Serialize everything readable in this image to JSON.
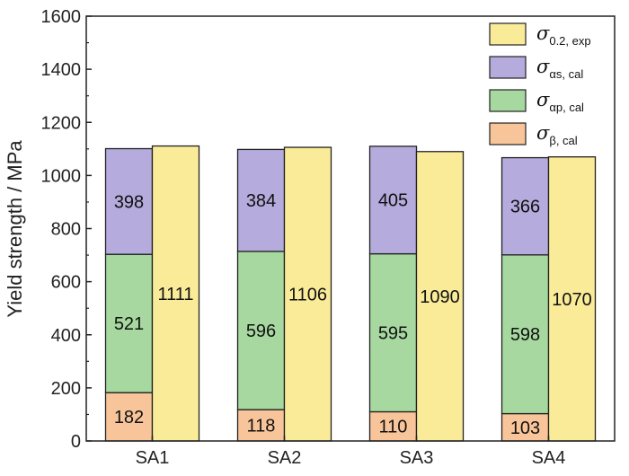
{
  "chart_data": {
    "type": "bar",
    "stacked_with_side_bar": true,
    "categories": [
      "SA1",
      "SA2",
      "SA3",
      "SA4"
    ],
    "ylabel": "Yield strength / MPa",
    "xlabel": "",
    "ylim": [
      0,
      1600
    ],
    "yticks": [
      0,
      200,
      400,
      600,
      800,
      1000,
      1200,
      1400,
      1600
    ],
    "grid": false,
    "legend_position": "top-right",
    "stacked_series": [
      {
        "key": "beta_cal",
        "legend_main": "σ",
        "legend_sub": "β, cal",
        "color": "#F8C49A",
        "values": [
          182,
          118,
          110,
          103
        ]
      },
      {
        "key": "alpha_p_cal",
        "legend_main": "σ",
        "legend_sub": "αp, cal",
        "color": "#A6D8A0",
        "values": [
          521,
          596,
          595,
          598
        ]
      },
      {
        "key": "alpha_s_cal",
        "legend_main": "σ",
        "legend_sub": "αs, cal",
        "color": "#B5ABDC",
        "values": [
          398,
          384,
          405,
          366
        ]
      }
    ],
    "side_series": {
      "key": "exp",
      "legend_main": "σ",
      "legend_sub": "0.2, exp",
      "color": "#FAEB99",
      "values": [
        1111,
        1106,
        1090,
        1070
      ]
    },
    "legend_order": [
      "exp",
      "alpha_s_cal",
      "alpha_p_cal",
      "beta_cal"
    ]
  }
}
